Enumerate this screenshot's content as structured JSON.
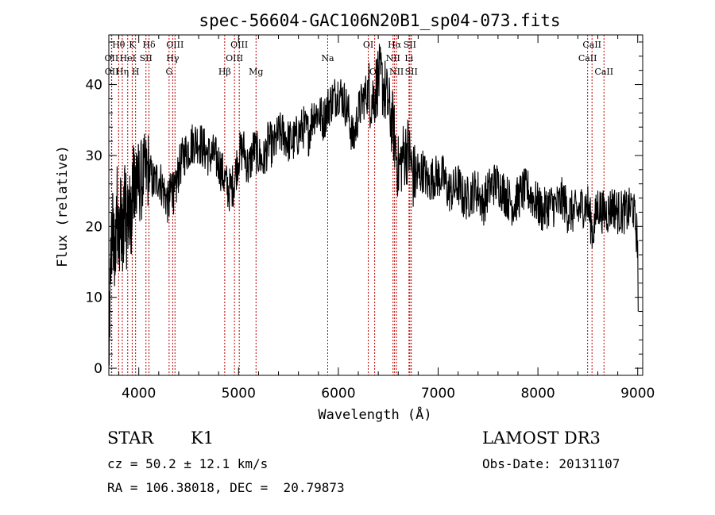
{
  "chart_data": {
    "type": "line",
    "title": "spec-56604-GAC106N20B1_sp04-073.fits",
    "xlabel": "Wavelength (Å)",
    "ylabel": "Flux (relative)",
    "xlim": [
      3700,
      9050
    ],
    "ylim": [
      -1,
      47
    ],
    "x_ticks": [
      4000,
      5000,
      6000,
      7000,
      8000,
      9000
    ],
    "y_ticks": [
      0,
      10,
      20,
      30,
      40
    ],
    "grid": false,
    "series": [
      {
        "x": [
          3700,
          3720,
          3740,
          3760,
          3780,
          3800,
          3820,
          3840,
          3860,
          3880,
          3900,
          3920,
          3940,
          3960,
          3980,
          4000,
          4050,
          4100,
          4150,
          4200,
          4250,
          4300,
          4330,
          4360,
          4400,
          4450,
          4500,
          4550,
          4600,
          4650,
          4700,
          4750,
          4800,
          4850,
          4900,
          4950,
          5000,
          5050,
          5100,
          5150,
          5200,
          5250,
          5300,
          5350,
          5400,
          5450,
          5500,
          5550,
          5600,
          5650,
          5700,
          5750,
          5800,
          5850,
          5900,
          5950,
          6000,
          6050,
          6100,
          6150,
          6200,
          6250,
          6300,
          6350,
          6400,
          6450,
          6500,
          6550,
          6600,
          6650,
          6700,
          6750,
          6800,
          6850,
          6900,
          6950,
          7000,
          7050,
          7100,
          7150,
          7200,
          7250,
          7300,
          7350,
          7400,
          7450,
          7500,
          7550,
          7600,
          7650,
          7700,
          7750,
          7800,
          7850,
          7900,
          7950,
          8000,
          8050,
          8100,
          8150,
          8200,
          8250,
          8300,
          8350,
          8400,
          8450,
          8500,
          8550,
          8600,
          8650,
          8700,
          8750,
          8800,
          8850,
          8900,
          8950,
          9000
        ],
        "y": [
          0.5,
          16,
          20,
          14,
          24,
          18,
          22,
          17,
          25,
          19,
          23,
          20,
          27,
          24,
          28,
          26,
          27,
          28,
          26,
          27,
          25,
          23,
          26,
          24,
          28,
          30,
          31,
          32,
          32,
          31,
          30,
          30,
          29,
          27,
          25,
          26,
          30,
          31,
          28,
          31,
          30,
          29,
          32,
          31,
          33,
          33,
          32,
          32,
          33,
          34,
          33,
          36,
          36,
          35,
          37,
          38,
          39,
          38,
          36,
          32,
          36,
          38,
          39,
          38,
          41,
          40,
          37,
          34,
          28,
          30,
          31,
          27,
          27,
          28,
          26,
          27,
          27,
          27,
          25,
          25,
          26,
          24,
          24,
          25,
          25,
          23,
          25,
          26,
          26,
          25,
          24,
          23,
          24,
          25,
          25,
          24,
          23,
          22,
          23,
          23,
          23,
          24,
          22,
          22,
          22,
          23,
          23,
          19,
          23,
          22,
          22,
          23,
          22,
          22,
          22,
          23,
          18
        ]
      }
    ],
    "spectral_lines": [
      {
        "label": "Hθ",
        "wl": 3798,
        "row": 1
      },
      {
        "label": "OII",
        "wl": 3727,
        "row": 2
      },
      {
        "label": "OII",
        "wl": 3729,
        "row": 3
      },
      {
        "label": "K",
        "wl": 3934,
        "row": 1
      },
      {
        "label": "HeI",
        "wl": 3889,
        "row": 2
      },
      {
        "label": "Hη",
        "wl": 3835,
        "row": 3
      },
      {
        "label": "Hδ",
        "wl": 4102,
        "row": 1
      },
      {
        "label": "SII",
        "wl": 4072,
        "row": 2
      },
      {
        "label": "H",
        "wl": 3968,
        "row": 3
      },
      {
        "label": "OIII",
        "wl": 4363,
        "row": 1
      },
      {
        "label": "Hγ",
        "wl": 4340,
        "row": 2
      },
      {
        "label": "G",
        "wl": 4304,
        "row": 3
      },
      {
        "label": "OIII",
        "wl": 5007,
        "row": 1
      },
      {
        "label": "OIII",
        "wl": 4959,
        "row": 2
      },
      {
        "label": "Hβ",
        "wl": 4861,
        "row": 3
      },
      {
        "label": "Mg",
        "wl": 5175,
        "row": 3
      },
      {
        "label": "Na",
        "wl": 5893,
        "row": 2
      },
      {
        "label": "OI",
        "wl": 6300,
        "row": 1
      },
      {
        "label": "OI",
        "wl": 6364,
        "row": 3
      },
      {
        "label": "Hα",
        "wl": 6563,
        "row": 1
      },
      {
        "label": "NII",
        "wl": 6548,
        "row": 2
      },
      {
        "label": "NII",
        "wl": 6583,
        "row": 3
      },
      {
        "label": "SII",
        "wl": 6716,
        "row": 1
      },
      {
        "label": "Li",
        "wl": 6708,
        "row": 2
      },
      {
        "label": "SII",
        "wl": 6731,
        "row": 3
      },
      {
        "label": "CaII",
        "wl": 8542,
        "row": 1
      },
      {
        "label": "CaII",
        "wl": 8498,
        "row": 2
      },
      {
        "label": "CaII",
        "wl": 8662,
        "row": 3
      }
    ],
    "line_color": "#c00000",
    "spectrum_color": "#000000"
  },
  "info": {
    "class_label": "STAR",
    "subclass": "K1",
    "survey": "LAMOST DR3",
    "cz": "cz = 50.2 ± 12.1 km/s",
    "obs_date": "Obs-Date: 20131107",
    "radec": "RA = 106.38018, DEC =  20.79873"
  }
}
